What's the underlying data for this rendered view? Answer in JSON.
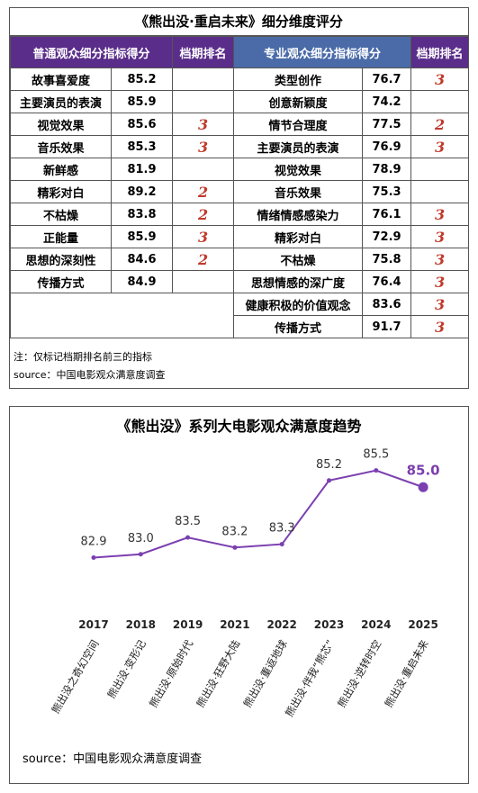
{
  "table": {
    "title": "《熊出没·重启未来》细分维度评分",
    "headers": {
      "public": "普通观众细分指标得分",
      "rank": "档期排名",
      "pro": "专业观众细分指标得分",
      "rank2": "档期排名"
    },
    "public_rows": [
      {
        "label": "故事喜爱度",
        "score": "85.2",
        "rank": ""
      },
      {
        "label": "主要演员的表演",
        "score": "85.9",
        "rank": ""
      },
      {
        "label": "视觉效果",
        "score": "85.6",
        "rank": "3"
      },
      {
        "label": "音乐效果",
        "score": "85.3",
        "rank": "3"
      },
      {
        "label": "新鲜感",
        "score": "81.9",
        "rank": ""
      },
      {
        "label": "精彩对白",
        "score": "89.2",
        "rank": "2"
      },
      {
        "label": "不枯燥",
        "score": "83.8",
        "rank": "2"
      },
      {
        "label": "正能量",
        "score": "85.9",
        "rank": "3"
      },
      {
        "label": "思想的深刻性",
        "score": "84.6",
        "rank": "2"
      },
      {
        "label": "传播方式",
        "score": "84.9",
        "rank": ""
      }
    ],
    "pro_rows": [
      {
        "label": "类型创作",
        "score": "76.7",
        "rank": "3"
      },
      {
        "label": "创意新颖度",
        "score": "74.2",
        "rank": ""
      },
      {
        "label": "情节合理度",
        "score": "77.5",
        "rank": "2"
      },
      {
        "label": "主要演员的表演",
        "score": "76.9",
        "rank": "3"
      },
      {
        "label": "视觉效果",
        "score": "78.9",
        "rank": ""
      },
      {
        "label": "音乐效果",
        "score": "75.3",
        "rank": ""
      },
      {
        "label": "情绪情感感染力",
        "score": "76.1",
        "rank": "3"
      },
      {
        "label": "精彩对白",
        "score": "72.9",
        "rank": "3"
      },
      {
        "label": "不枯燥",
        "score": "75.8",
        "rank": "3"
      },
      {
        "label": "思想情感的深广度",
        "score": "76.4",
        "rank": "3"
      },
      {
        "label": "健康积极的价值观念",
        "score": "83.6",
        "rank": "3"
      },
      {
        "label": "传播方式",
        "score": "91.7",
        "rank": "3"
      }
    ],
    "note": "注：仅标记档期排名前三的指标",
    "source": "source：中国电影观众满意度调查"
  },
  "chart_data": {
    "type": "line",
    "title": "《熊出没》系列大电影观众满意度趋势",
    "x": [
      "2017",
      "2018",
      "2019",
      "2021",
      "2022",
      "2023",
      "2024",
      "2025"
    ],
    "x_labels": [
      "熊出没之奇幻空间",
      "熊出没·变形记",
      "熊出没·原始时代",
      "熊出没·狂野大陆",
      "熊出没·重返地球",
      "熊出没·伴我“熊芯”",
      "熊出没·逆转时空",
      "熊出没·重启未来"
    ],
    "series": [
      {
        "values": [
          82.9,
          83.0,
          83.5,
          83.2,
          83.3,
          85.2,
          85.5,
          85.0
        ]
      }
    ],
    "value_labels": [
      "82.9",
      "83.0",
      "83.5",
      "83.2",
      "83.3",
      "85.2",
      "85.5",
      "85.0"
    ],
    "highlight_index": 7,
    "ylim": [
      82.0,
      86.0
    ],
    "grid": false,
    "line_color": "#7b3fb0",
    "source": "source：中国电影观众满意度调查"
  }
}
